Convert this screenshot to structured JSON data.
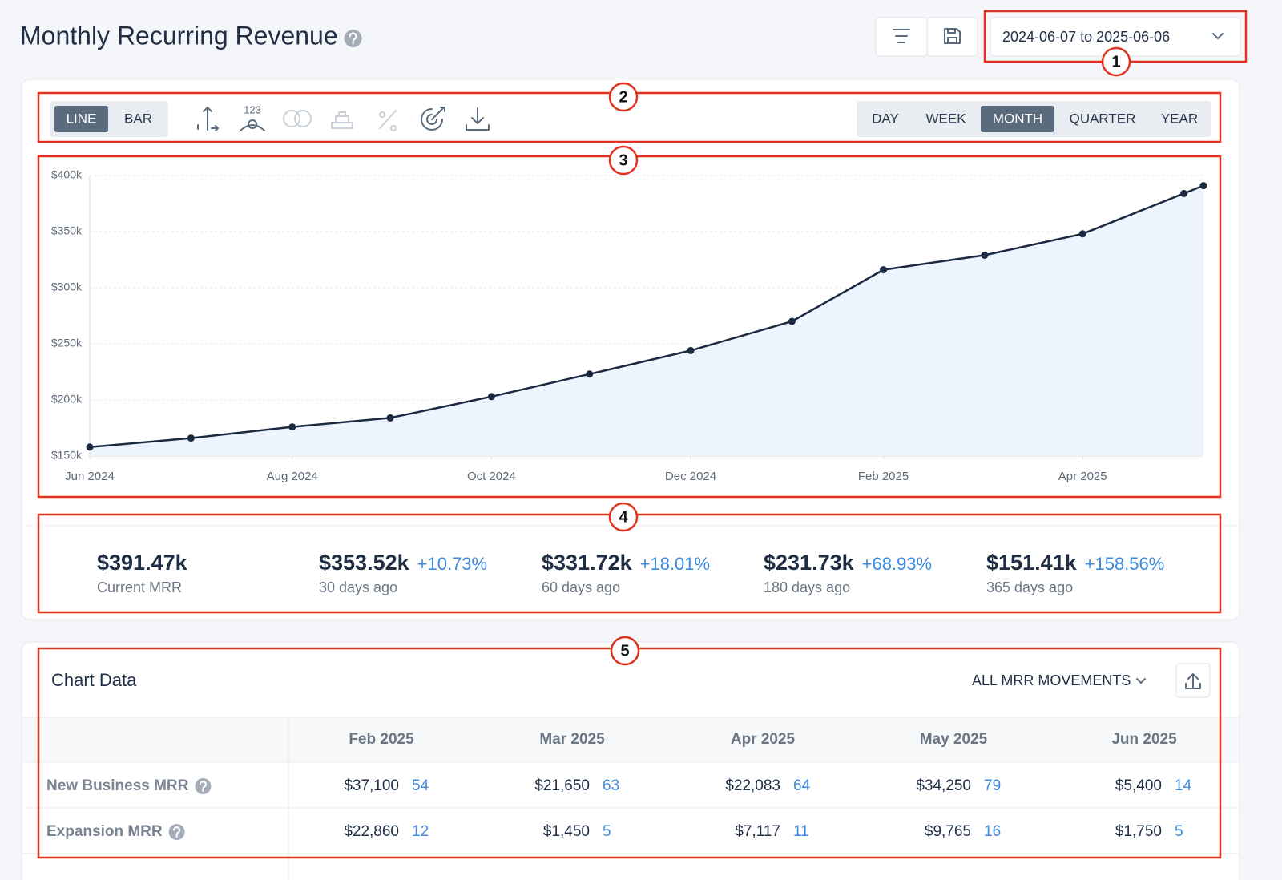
{
  "header": {
    "title": "Monthly Recurring Revenue",
    "date_range": "2024-06-07 to 2025-06-06"
  },
  "annotations": [
    "1",
    "2",
    "3",
    "4",
    "5"
  ],
  "toolbar": {
    "chart_types": [
      "LINE",
      "BAR"
    ],
    "active_chart_type": "LINE",
    "periods": [
      "DAY",
      "WEEK",
      "MONTH",
      "QUARTER",
      "YEAR"
    ],
    "active_period": "MONTH"
  },
  "chart_data": {
    "type": "line",
    "x": [
      "2024-06-30",
      "2024-07-31",
      "2024-08-31",
      "2024-09-30",
      "2024-10-31",
      "2024-11-30",
      "2024-12-31",
      "2025-01-31",
      "2025-02-28",
      "2025-03-31",
      "2025-04-30",
      "2025-05-31",
      "2025-06-06"
    ],
    "values": [
      158000,
      166000,
      176000,
      184000,
      203000,
      223000,
      244000,
      270000,
      316000,
      329000,
      348000,
      384000,
      391000
    ],
    "color": "#1b2a41",
    "area_color": "#eef4fd",
    "xlim": [
      "2024-06-30",
      "2025-06-06"
    ],
    "xticks": [
      {
        "value": "2024-06-30",
        "label": "Jun 2024"
      },
      {
        "value": "2024-08-31",
        "label": "Aug 2024"
      },
      {
        "value": "2024-10-31",
        "label": "Oct 2024"
      },
      {
        "value": "2024-12-31",
        "label": "Dec 2024"
      },
      {
        "value": "2025-02-28",
        "label": "Feb 2025"
      },
      {
        "value": "2025-04-30",
        "label": "Apr 2025"
      }
    ],
    "ylim": [
      150000,
      400000
    ],
    "yticks": [
      {
        "value": 150000,
        "label": "$150k"
      },
      {
        "value": 200000,
        "label": "$200k"
      },
      {
        "value": 250000,
        "label": "$250k"
      },
      {
        "value": 300000,
        "label": "$300k"
      },
      {
        "value": 350000,
        "label": "$350k"
      },
      {
        "value": 400000,
        "label": "$400k"
      }
    ],
    "grid": true
  },
  "kpis": [
    {
      "value": "$391.47k",
      "label": "Current MRR"
    },
    {
      "value": "$353.52k",
      "change": "+10.73%",
      "label": "30 days ago"
    },
    {
      "value": "$331.72k",
      "change": "+18.01%",
      "label": "60 days ago"
    },
    {
      "value": "$231.73k",
      "change": "+68.93%",
      "label": "180 days ago"
    },
    {
      "value": "$151.41k",
      "change": "+158.56%",
      "label": "365 days ago"
    }
  ],
  "table": {
    "title": "Chart Data",
    "filter": "ALL MRR MOVEMENTS",
    "columns": [
      "Feb 2025",
      "Mar 2025",
      "Apr 2025",
      "May 2025",
      "Jun 2025"
    ],
    "rows": [
      {
        "label": "New Business MRR",
        "cells": [
          [
            "$37,100",
            "54"
          ],
          [
            "$21,650",
            "63"
          ],
          [
            "$22,083",
            "64"
          ],
          [
            "$34,250",
            "79"
          ],
          [
            "$5,400",
            "14"
          ]
        ]
      },
      {
        "label": "Expansion MRR",
        "cells": [
          [
            "$22,860",
            "12"
          ],
          [
            "$1,450",
            "5"
          ],
          [
            "$7,117",
            "11"
          ],
          [
            "$9,765",
            "16"
          ],
          [
            "$1,750",
            "5"
          ]
        ]
      }
    ]
  }
}
